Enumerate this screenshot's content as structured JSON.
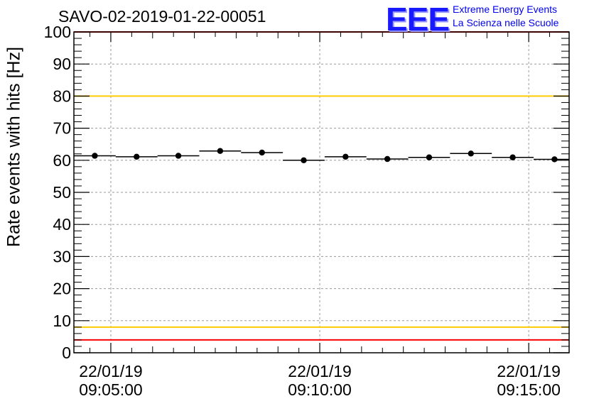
{
  "header": {
    "title": "SAVO-02-2019-01-22-00051",
    "logo_mark": "EEE",
    "logo_line1": "Extreme Energy Events",
    "logo_line2": "La Scienza nelle Scuole"
  },
  "chart_data": {
    "type": "scatter",
    "title": "SAVO-02-2019-01-22-00051",
    "xlabel": "",
    "ylabel": "Rate events with hits [Hz]",
    "ylim": [
      0,
      100
    ],
    "y_ticks": [
      "0",
      "10",
      "20",
      "30",
      "40",
      "50",
      "60",
      "70",
      "80",
      "90",
      "100"
    ],
    "x_ticks": [
      {
        "date": "22/01/19",
        "time": "09:05:00",
        "seconds": 0
      },
      {
        "date": "22/01/19",
        "time": "09:10:00",
        "seconds": 300
      },
      {
        "date": "22/01/19",
        "time": "09:15:00",
        "seconds": 600
      }
    ],
    "xlim_seconds": [
      -53,
      658
    ],
    "grid": true,
    "bin_width_seconds": 60,
    "series": [
      {
        "x_seconds": [
          -23,
          37,
          97,
          157,
          217,
          277,
          337,
          397,
          457,
          517,
          577,
          637
        ],
        "values": [
          61.4,
          61.1,
          61.4,
          62.9,
          62.4,
          60.0,
          61.1,
          60.4,
          60.9,
          62.1,
          60.9,
          60.3
        ]
      }
    ],
    "reference_lines": [
      {
        "value": 100,
        "color": "#ff0000"
      },
      {
        "value": 80,
        "color": "#ffcc00"
      },
      {
        "value": 8,
        "color": "#ffcc00"
      },
      {
        "value": 4,
        "color": "#ff0000"
      }
    ],
    "colors": {
      "points": "#000000",
      "grid": "#9a9a9a"
    }
  }
}
